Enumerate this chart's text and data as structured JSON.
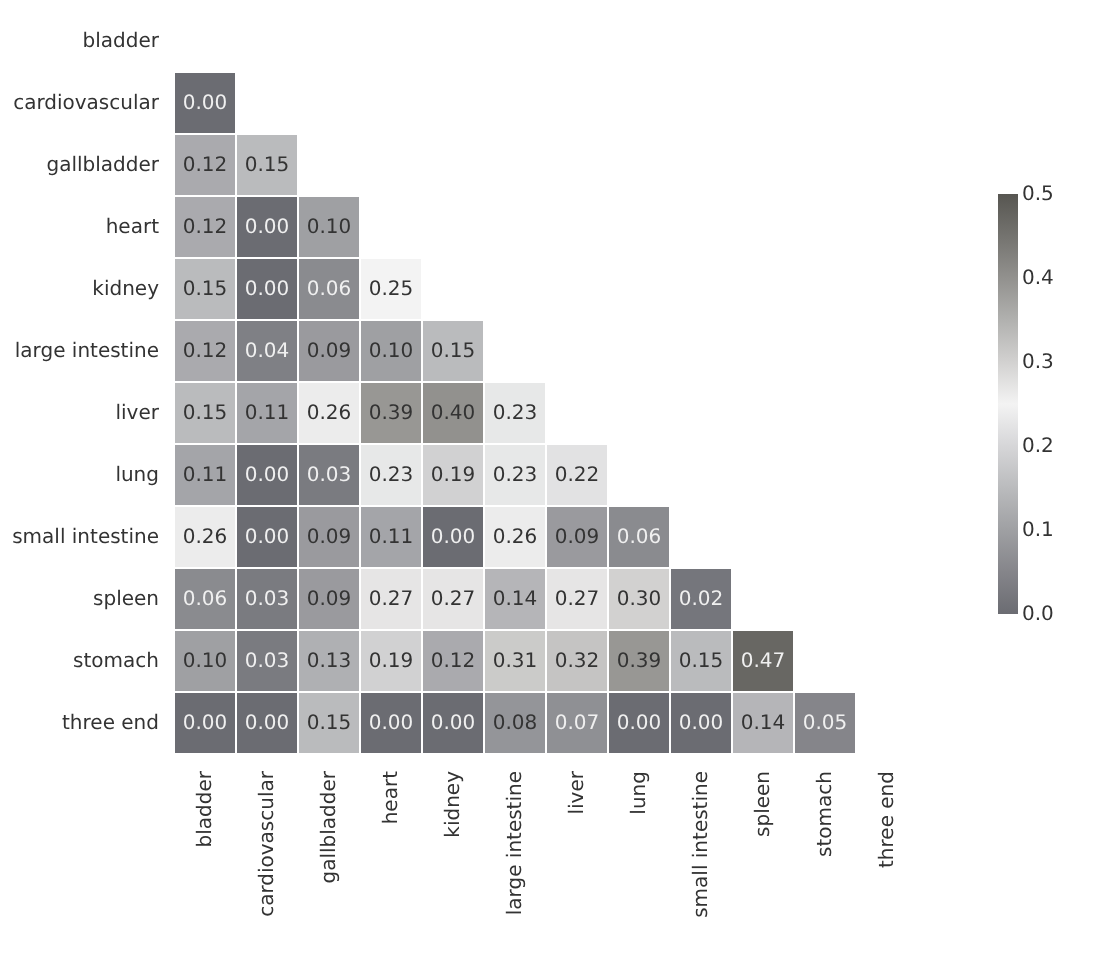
{
  "chart_data": {
    "type": "heatmap",
    "categories": [
      "bladder",
      "cardiovascular",
      "gallbladder",
      "heart",
      "kidney",
      "large intestine",
      "liver",
      "lung",
      "small intestine",
      "spleen",
      "stomach",
      "three end"
    ],
    "y_categories": [
      "bladder",
      "cardiovascular",
      "gallbladder",
      "heart",
      "kidney",
      "large intestine",
      "liver",
      "lung",
      "small intestine",
      "spleen",
      "stomach",
      "three end"
    ],
    "cells": [
      [
        null,
        null,
        null,
        null,
        null,
        null,
        null,
        null,
        null,
        null,
        null,
        null
      ],
      [
        0.0,
        null,
        null,
        null,
        null,
        null,
        null,
        null,
        null,
        null,
        null,
        null
      ],
      [
        0.12,
        0.15,
        null,
        null,
        null,
        null,
        null,
        null,
        null,
        null,
        null,
        null
      ],
      [
        0.12,
        0.0,
        0.1,
        null,
        null,
        null,
        null,
        null,
        null,
        null,
        null,
        null
      ],
      [
        0.15,
        0.0,
        0.06,
        0.25,
        null,
        null,
        null,
        null,
        null,
        null,
        null,
        null
      ],
      [
        0.12,
        0.04,
        0.09,
        0.1,
        0.15,
        null,
        null,
        null,
        null,
        null,
        null,
        null
      ],
      [
        0.15,
        0.11,
        0.26,
        0.39,
        0.4,
        0.23,
        null,
        null,
        null,
        null,
        null,
        null
      ],
      [
        0.11,
        0.0,
        0.03,
        0.23,
        0.19,
        0.23,
        0.22,
        null,
        null,
        null,
        null,
        null
      ],
      [
        0.26,
        0.0,
        0.09,
        0.11,
        0.0,
        0.26,
        0.09,
        0.06,
        null,
        null,
        null,
        null
      ],
      [
        0.06,
        0.03,
        0.09,
        0.27,
        0.27,
        0.14,
        0.27,
        0.3,
        0.02,
        null,
        null,
        null
      ],
      [
        0.1,
        0.03,
        0.13,
        0.19,
        0.12,
        0.31,
        0.32,
        0.39,
        0.15,
        0.47,
        null,
        null
      ],
      [
        0.0,
        0.0,
        0.15,
        0.0,
        0.0,
        0.08,
        0.07,
        0.0,
        0.0,
        0.14,
        0.05,
        null
      ]
    ],
    "cell_labels": [
      [
        null,
        null,
        null,
        null,
        null,
        null,
        null,
        null,
        null,
        null,
        null,
        null
      ],
      [
        "0.00",
        null,
        null,
        null,
        null,
        null,
        null,
        null,
        null,
        null,
        null,
        null
      ],
      [
        "0.12",
        "0.15",
        null,
        null,
        null,
        null,
        null,
        null,
        null,
        null,
        null,
        null
      ],
      [
        "0.12",
        "0.00",
        "0.10",
        null,
        null,
        null,
        null,
        null,
        null,
        null,
        null,
        null
      ],
      [
        "0.15",
        "0.00",
        "0.06",
        "0.25",
        null,
        null,
        null,
        null,
        null,
        null,
        null,
        null
      ],
      [
        "0.12",
        "0.04",
        "0.09",
        "0.10",
        "0.15",
        null,
        null,
        null,
        null,
        null,
        null,
        null
      ],
      [
        "0.15",
        "0.11",
        "0.26",
        "0.39",
        "0.40",
        "0.23",
        null,
        null,
        null,
        null,
        null,
        null
      ],
      [
        "0.11",
        "0.00",
        "0.03",
        "0.23",
        "0.19",
        "0.23",
        "0.22",
        null,
        null,
        null,
        null,
        null
      ],
      [
        "0.26",
        "0.00",
        "0.09",
        "0.11",
        "0.00",
        "0.26",
        "0.09",
        "0.06",
        null,
        null,
        null,
        null
      ],
      [
        "0.06",
        "0.03",
        "0.09",
        "0.27",
        "0.27",
        "0.14",
        "0.27",
        "0.30",
        "0.02",
        null,
        null,
        null
      ],
      [
        "0.10",
        "0.03",
        "0.13",
        "0.19",
        "0.12",
        "0.31",
        "0.32",
        "0.39",
        "0.15",
        "0.47",
        null,
        null
      ],
      [
        "0.00",
        "0.00",
        "0.15",
        "0.00",
        "0.00",
        "0.08",
        "0.07",
        "0.00",
        "0.00",
        "0.14",
        "0.05",
        null
      ]
    ],
    "data_labels": true,
    "clim": [
      0,
      0.5
    ],
    "cticks": [
      {
        "value": 0,
        "label": "0.0"
      },
      0.1,
      0.2,
      0.3,
      0.4,
      0.5
    ]
  }
}
